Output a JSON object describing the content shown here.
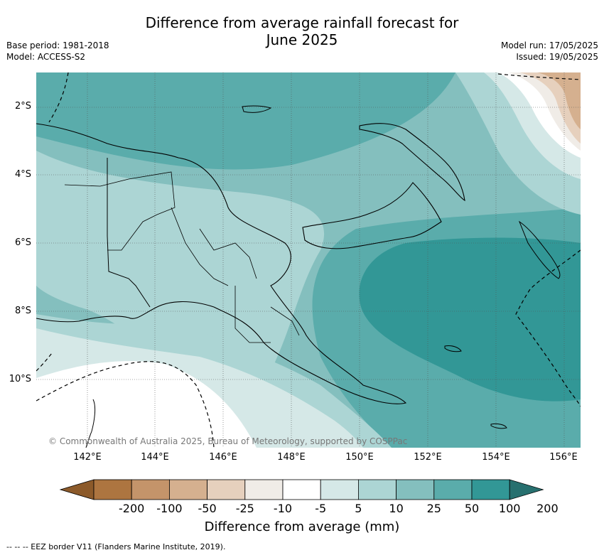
{
  "title_line1": "Difference from average rainfall forecast for",
  "title_line2": "June 2025",
  "meta_left": [
    "Base period: 1981-2018",
    "Model: ACCESS-S2"
  ],
  "meta_right": [
    "Model run: 17/05/2025",
    "Issued: 19/05/2025"
  ],
  "lat_labels": [
    "2°S",
    "4°S",
    "6°S",
    "8°S",
    "10°S"
  ],
  "lon_labels": [
    "142°E",
    "144°E",
    "146°E",
    "148°E",
    "150°E",
    "152°E",
    "154°E",
    "156°E"
  ],
  "copyright": "© Commonwealth of Australia 2025, Bureau of Meteorology, supported by COSPPac",
  "colorbar": {
    "ticks": [
      "-200",
      "-100",
      "-50",
      "-25",
      "-10",
      "-5",
      "5",
      "10",
      "25",
      "50",
      "100",
      "200"
    ],
    "colors": [
      "#8c5a2a",
      "#ad7540",
      "#c4946a",
      "#d5b08f",
      "#e6d0bd",
      "#f0ece7",
      "#ffffff",
      "#d5e8e7",
      "#acd5d4",
      "#84bfbe",
      "#5aacab",
      "#329796",
      "#27706f"
    ],
    "label": "Difference from average (mm)"
  },
  "footer": "--  --  -- EEZ border V11 (Flanders Marine Institute, 2019)."
}
